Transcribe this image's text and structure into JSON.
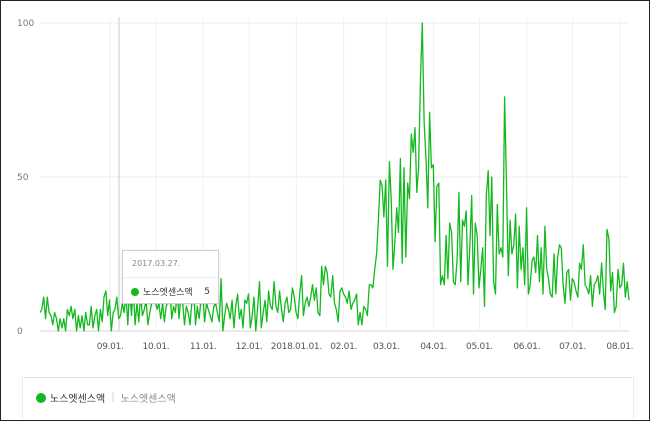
{
  "chart_data": {
    "type": "line",
    "y_ticks": [
      "0",
      "50",
      "100"
    ],
    "ylim": [
      0,
      100
    ],
    "x_tick_labels": [
      "09.01.",
      "10.01.",
      "11.01.",
      "12.01.",
      "2018.01.01.",
      "02.01.",
      "03.01.",
      "04.01.",
      "05.01.",
      "06.01.",
      "07.01.",
      "08.01."
    ],
    "series": [
      {
        "name": "노스엣센스액",
        "color": "#13b91e",
        "x_start": "2017-07-17",
        "x_end": "2018-08-07",
        "values": [
          6,
          7,
          11,
          4,
          11,
          6,
          5,
          2,
          6,
          4,
          0,
          4,
          1,
          4,
          0,
          7,
          5,
          8,
          4,
          7,
          0,
          5,
          1,
          5,
          0,
          6,
          2,
          2,
          8,
          1,
          5,
          7,
          0,
          7,
          3,
          11,
          13,
          5,
          10,
          0,
          6,
          7,
          11,
          4,
          5,
          9,
          6,
          12,
          2,
          14,
          5,
          14,
          2,
          9,
          3,
          12,
          5,
          7,
          10,
          2,
          6,
          9,
          12,
          10,
          7,
          9,
          4,
          9,
          3,
          8,
          10,
          14,
          4,
          8,
          6,
          13,
          4,
          11,
          9,
          2,
          8,
          6,
          2,
          9,
          13,
          2,
          8,
          4,
          10,
          12,
          3,
          9,
          7,
          5,
          3,
          8,
          9,
          6,
          3,
          17,
          0,
          5,
          9,
          7,
          4,
          10,
          1,
          8,
          12,
          4,
          7,
          1,
          10,
          9,
          12,
          1,
          5,
          11,
          0,
          8,
          16,
          1,
          6,
          10,
          3,
          13,
          8,
          7,
          16,
          8,
          6,
          13,
          7,
          3,
          9,
          11,
          6,
          7,
          14,
          11,
          6,
          4,
          12,
          18,
          5,
          9,
          11,
          8,
          11,
          15,
          10,
          14,
          6,
          5,
          21,
          15,
          21,
          19,
          12,
          11,
          18,
          9,
          7,
          3,
          13,
          14,
          12,
          11,
          9,
          13,
          7,
          9,
          10,
          12,
          2,
          6,
          2,
          8,
          7,
          5,
          15,
          15,
          14,
          20,
          25,
          36,
          49,
          47,
          37,
          49,
          21,
          55,
          43,
          20,
          29,
          40,
          32,
          56,
          22,
          53,
          24,
          48,
          43,
          64,
          58,
          66,
          45,
          53,
          82,
          100,
          68,
          56,
          40,
          71,
          53,
          54,
          29,
          47,
          48,
          15,
          18,
          15,
          31,
          17,
          35,
          32,
          16,
          15,
          23,
          45,
          16,
          36,
          34,
          39,
          15,
          28,
          44,
          12,
          35,
          31,
          14,
          20,
          27,
          8,
          44,
          52,
          31,
          50,
          16,
          12,
          41,
          25,
          27,
          24,
          76,
          49,
          18,
          36,
          25,
          28,
          38,
          14,
          34,
          20,
          27,
          15,
          40,
          12,
          15,
          23,
          24,
          19,
          31,
          16,
          27,
          12,
          34,
          20,
          17,
          12,
          11,
          25,
          12,
          24,
          28,
          27,
          15,
          9,
          19,
          20,
          10,
          17,
          16,
          13,
          11,
          22,
          20,
          28,
          15,
          14,
          12,
          18,
          8,
          15,
          16,
          18,
          12,
          22,
          13,
          7,
          33,
          30,
          13,
          19,
          6,
          8,
          20,
          14,
          15,
          22,
          11,
          16,
          10
        ]
      }
    ],
    "legend": [
      "노스엣센스액",
      "노스엣센스액"
    ],
    "tooltip": {
      "date": "2017.03.27.",
      "series": "노스엣센스액",
      "value": "5"
    },
    "grid": true
  }
}
